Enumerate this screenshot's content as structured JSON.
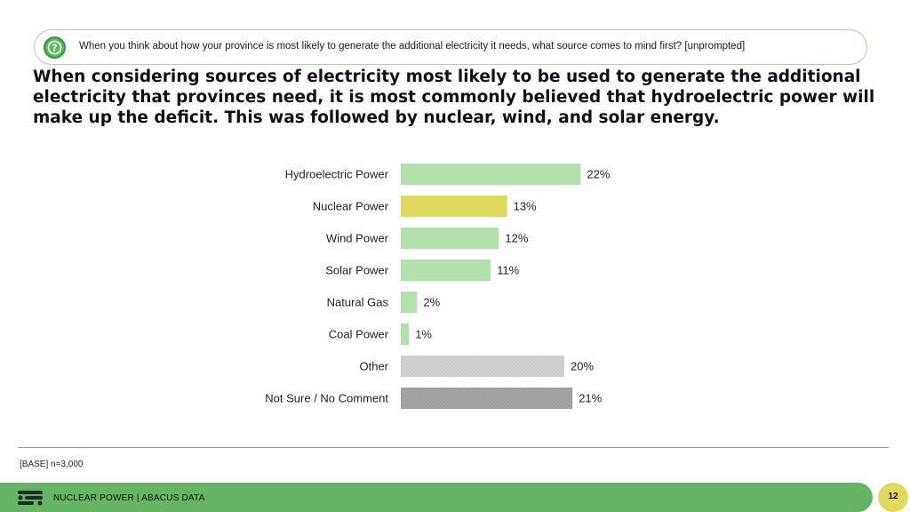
{
  "question": {
    "text": "When you think about how your province is most likely to generate the additional electricity it needs, what source comes to mind first? [unprompted]",
    "icon": "question-mark-icon"
  },
  "headline": "When considering sources of electricity most likely to be used to generate the additional electricity that provinces need, it is most commonly believed that hydroelectric power will make up the deficit. This was followed by nuclear, wind, and solar energy.",
  "chart_data": {
    "type": "bar",
    "orientation": "horizontal",
    "categories": [
      "Hydroelectric Power",
      "Nuclear Power",
      "Wind Power",
      "Solar Power",
      "Natural Gas",
      "Coal Power",
      "Other",
      "Not Sure / No Comment"
    ],
    "values": [
      22,
      13,
      12,
      11,
      2,
      1,
      20,
      21
    ],
    "value_labels": [
      "22%",
      "13%",
      "12%",
      "11%",
      "2%",
      "1%",
      "20%",
      "21%"
    ],
    "unit": "%",
    "colors": [
      "#b3e1ab",
      "#dcd95e",
      "#b3e1ab",
      "#b3e1ab",
      "#b3e1ab",
      "#b3e1ab",
      "#d2d3d2",
      "#a5a6a5"
    ],
    "hatched": [
      false,
      false,
      false,
      false,
      false,
      false,
      true,
      true
    ],
    "title": "",
    "xlabel": "",
    "ylabel": "",
    "xlim": [
      0,
      22
    ],
    "grid": false
  },
  "base_note": "[BASE] n=3,000",
  "footer": {
    "text": "NUCLEAR POWER  |  ABACUS DATA",
    "page_number": "12",
    "logo_icon": "abacus-logo-icon",
    "bar_color": "#65b565",
    "page_circle_color": "#e0d95e"
  }
}
